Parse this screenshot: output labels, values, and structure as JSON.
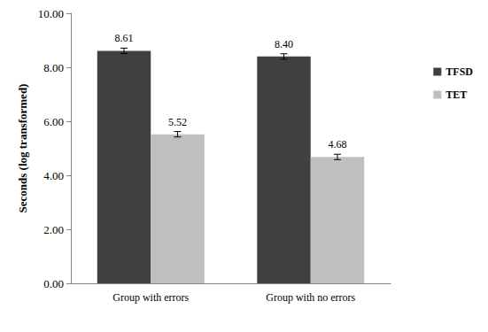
{
  "chart_data": {
    "type": "bar",
    "categories": [
      "Group with errors",
      "Group with no errors"
    ],
    "series": [
      {
        "name": "TFSD",
        "color": "#404040",
        "values": [
          8.61,
          8.4
        ],
        "value_labels": [
          "8.61",
          "8.40"
        ],
        "errors": [
          0.1,
          0.1
        ]
      },
      {
        "name": "TET",
        "color": "#bfbfbf",
        "values": [
          5.52,
          4.68
        ],
        "value_labels": [
          "5.52",
          "4.68"
        ],
        "errors": [
          0.1,
          0.1
        ]
      }
    ],
    "y_label": "Seconds (log transformed)",
    "ylim": [
      0,
      10
    ],
    "yticks": [
      {
        "value": 0,
        "label": "0.00"
      },
      {
        "value": 2,
        "label": "2.00"
      },
      {
        "value": 4,
        "label": "4.00"
      },
      {
        "value": 6,
        "label": "6.00"
      },
      {
        "value": 8,
        "label": "8.00"
      },
      {
        "value": 10,
        "label": "10.00"
      }
    ],
    "grid": false,
    "legend": "right",
    "data_labels": true
  }
}
